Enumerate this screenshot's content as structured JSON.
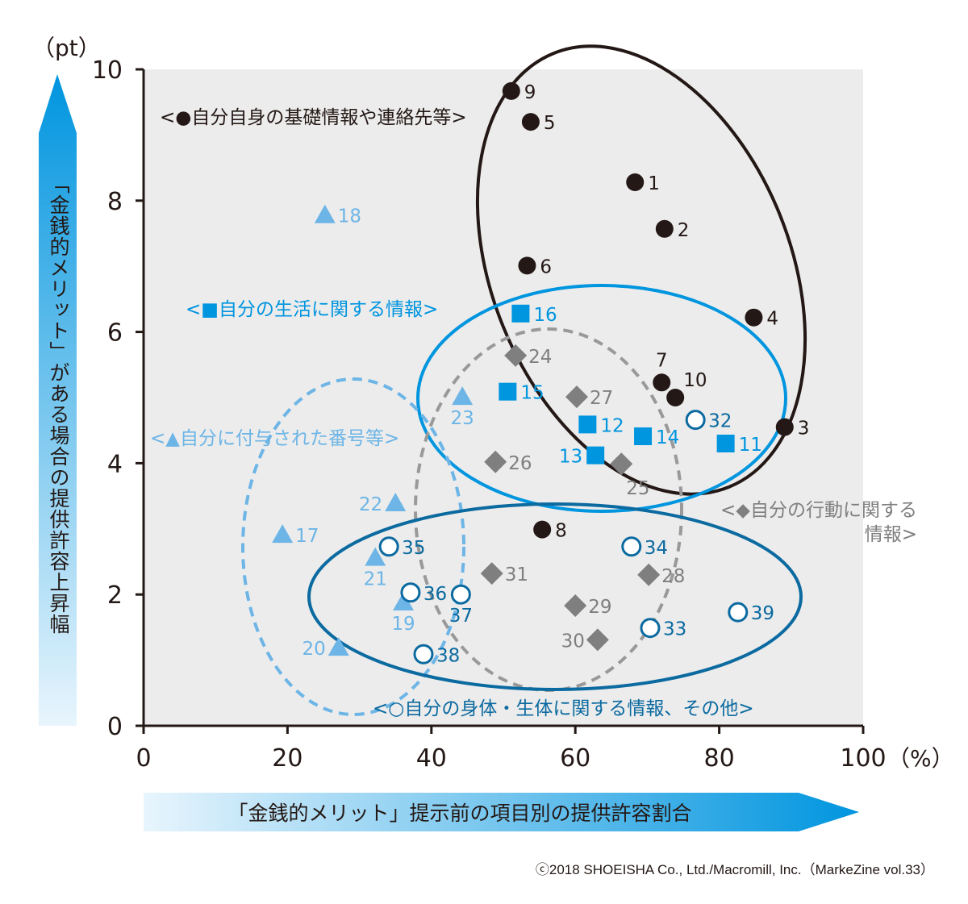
{
  "chart_data": {
    "type": "scatter",
    "title": "",
    "xlabel": "「金銭的メリット」提示前の項目別の提供許容割合",
    "ylabel": "「金銭的メリット」がある場合の提供許容上昇幅",
    "x_unit": "（%）",
    "y_unit": "（pt）",
    "xlim": [
      0,
      100
    ],
    "ylim": [
      0,
      10
    ],
    "xticks": [
      0,
      20,
      40,
      60,
      80,
      100
    ],
    "yticks": [
      0,
      2,
      4,
      6,
      8,
      10
    ],
    "grid": false,
    "series": [
      {
        "name": "<●自分自身の基礎情報や連絡先等>",
        "marker": "filled-circle",
        "color": "#231815",
        "points": [
          {
            "id": "9",
            "x": 51.1,
            "y": 9.67,
            "label": "right"
          },
          {
            "id": "5",
            "x": 53.8,
            "y": 9.2,
            "label": "right"
          },
          {
            "id": "1",
            "x": 68.3,
            "y": 8.28,
            "label": "right"
          },
          {
            "id": "2",
            "x": 72.4,
            "y": 7.57,
            "label": "right"
          },
          {
            "id": "6",
            "x": 53.3,
            "y": 7.01,
            "label": "right"
          },
          {
            "id": "4",
            "x": 84.8,
            "y": 6.22,
            "label": "right"
          },
          {
            "id": "7",
            "x": 72.0,
            "y": 5.23,
            "label": "above"
          },
          {
            "id": "10",
            "x": 73.9,
            "y": 5.0,
            "label": "upright"
          },
          {
            "id": "3",
            "x": 89.1,
            "y": 4.55,
            "label": "right"
          },
          {
            "id": "8",
            "x": 55.4,
            "y": 2.99,
            "label": "right"
          }
        ]
      },
      {
        "name": "<■自分の生活に関する情報>",
        "marker": "square",
        "color": "#0095df",
        "points": [
          {
            "id": "16",
            "x": 52.4,
            "y": 6.28,
            "label": "right"
          },
          {
            "id": "15",
            "x": 50.6,
            "y": 5.09,
            "label": "right"
          },
          {
            "id": "12",
            "x": 61.7,
            "y": 4.59,
            "label": "right"
          },
          {
            "id": "14",
            "x": 69.4,
            "y": 4.41,
            "label": "right"
          },
          {
            "id": "13",
            "x": 62.8,
            "y": 4.12,
            "label": "left"
          },
          {
            "id": "11",
            "x": 80.9,
            "y": 4.3,
            "label": "right"
          }
        ]
      },
      {
        "name": "<▲自分に付与された番号等>",
        "marker": "triangle",
        "color": "#6db5e6",
        "points": [
          {
            "id": "18",
            "x": 25.2,
            "y": 7.78,
            "label": "right"
          },
          {
            "id": "23",
            "x": 44.3,
            "y": 5.01,
            "label": "below"
          },
          {
            "id": "22",
            "x": 35.0,
            "y": 3.39,
            "label": "left"
          },
          {
            "id": "17",
            "x": 19.3,
            "y": 2.91,
            "label": "right"
          },
          {
            "id": "21",
            "x": 32.2,
            "y": 2.56,
            "label": "below"
          },
          {
            "id": "19",
            "x": 36.1,
            "y": 1.88,
            "label": "below"
          },
          {
            "id": "20",
            "x": 27.1,
            "y": 1.19,
            "label": "left"
          }
        ]
      },
      {
        "name": "<◆自分の行動に関する情報>",
        "marker": "diamond",
        "color": "#7f7f7f",
        "points": [
          {
            "id": "24",
            "x": 51.7,
            "y": 5.64,
            "label": "right"
          },
          {
            "id": "27",
            "x": 60.2,
            "y": 5.01,
            "label": "right"
          },
          {
            "id": "26",
            "x": 48.9,
            "y": 4.02,
            "label": "right"
          },
          {
            "id": "25",
            "x": 66.4,
            "y": 3.99,
            "label": "belowright"
          },
          {
            "id": "31",
            "x": 48.4,
            "y": 2.32,
            "label": "right"
          },
          {
            "id": "28",
            "x": 70.2,
            "y": 2.3,
            "label": "right"
          },
          {
            "id": "29",
            "x": 60.0,
            "y": 1.83,
            "label": "right"
          },
          {
            "id": "30",
            "x": 63.1,
            "y": 1.31,
            "label": "left"
          }
        ]
      },
      {
        "name": "<○自分の身体・生体に関する情報、その他>",
        "marker": "open-circle",
        "color": "#0b6aa0",
        "points": [
          {
            "id": "32",
            "x": 76.7,
            "y": 4.66,
            "label": "right"
          },
          {
            "id": "35",
            "x": 34.1,
            "y": 2.73,
            "label": "right"
          },
          {
            "id": "34",
            "x": 67.8,
            "y": 2.73,
            "label": "right"
          },
          {
            "id": "36",
            "x": 37.1,
            "y": 2.03,
            "label": "right"
          },
          {
            "id": "37",
            "x": 44.1,
            "y": 2.0,
            "label": "below"
          },
          {
            "id": "39",
            "x": 82.6,
            "y": 1.73,
            "label": "right"
          },
          {
            "id": "33",
            "x": 70.4,
            "y": 1.49,
            "label": "right"
          },
          {
            "id": "38",
            "x": 38.9,
            "y": 1.09,
            "label": "right"
          }
        ]
      }
    ],
    "group_labels": {
      "black": "<●自分自身の基礎情報や連絡先等>",
      "blue": "<■自分の生活に関する情報>",
      "triangle": "<▲自分に付与された番号等>",
      "gray_line1": "<◆自分の行動に関する",
      "gray_line2": "情報>",
      "open": "<○自分の身体・生体に関する情報、その他>"
    }
  },
  "copyright": "ⓒ2018 SHOEISHA Co., Ltd./Macromill, Inc.（MarkeZine vol.33）"
}
